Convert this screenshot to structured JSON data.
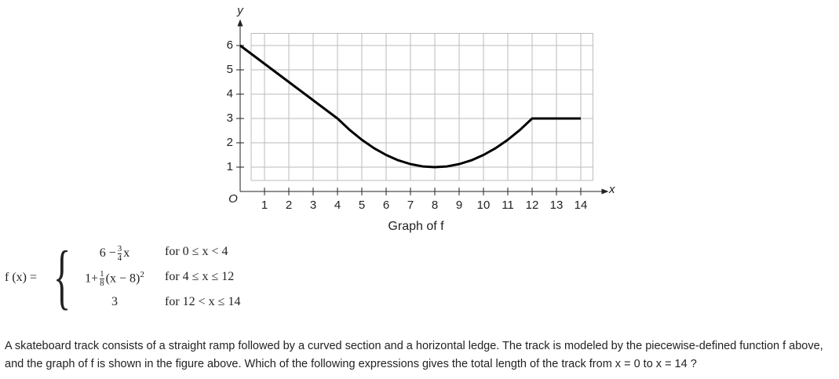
{
  "chart_data": {
    "type": "line",
    "caption": "Graph of f",
    "x_label": "x",
    "y_label": "y",
    "origin_label": "O",
    "x": [
      0,
      1,
      2,
      3,
      4,
      4.5,
      5,
      5.5,
      6,
      6.5,
      7,
      7.5,
      8,
      8.5,
      9,
      9.5,
      10,
      10.5,
      11,
      11.5,
      12,
      13,
      14
    ],
    "values": [
      6,
      5.25,
      4.5,
      3.75,
      3,
      2.53,
      2.125,
      1.78,
      1.5,
      1.28,
      1.125,
      1.03,
      1,
      1.03,
      1.125,
      1.28,
      1.5,
      1.78,
      2.125,
      2.53,
      3,
      3,
      3
    ],
    "color": "#000000",
    "xlim": [
      0,
      14.5
    ],
    "ylim": [
      0,
      6.5
    ],
    "xticks": [
      1,
      2,
      3,
      4,
      5,
      6,
      7,
      8,
      9,
      10,
      11,
      12,
      13,
      14
    ],
    "yticks": [
      1,
      2,
      3,
      4,
      5,
      6
    ],
    "grid": true
  },
  "definition": {
    "lhs": "f (x) =",
    "pieces": [
      {
        "before": "6 −",
        "frac": [
          "3",
          "4"
        ],
        "after": "x",
        "condition": "for  0 ≤ x < 4"
      },
      {
        "before": "1+",
        "frac": [
          "1",
          "8"
        ],
        "after": "(x − 8)",
        "sup": "2",
        "condition": "for  4 ≤ x ≤ 12"
      },
      {
        "before": "3",
        "condition": "for  12 < x ≤ 14"
      }
    ]
  },
  "question": "A skateboard track consists of a straight ramp followed by a curved section and a horizontal ledge. The track is modeled by the piecewise-defined function f above, and the graph of f is shown in the figure above. Which of the following expressions gives the total length of the track from x = 0 to x = 14 ?"
}
